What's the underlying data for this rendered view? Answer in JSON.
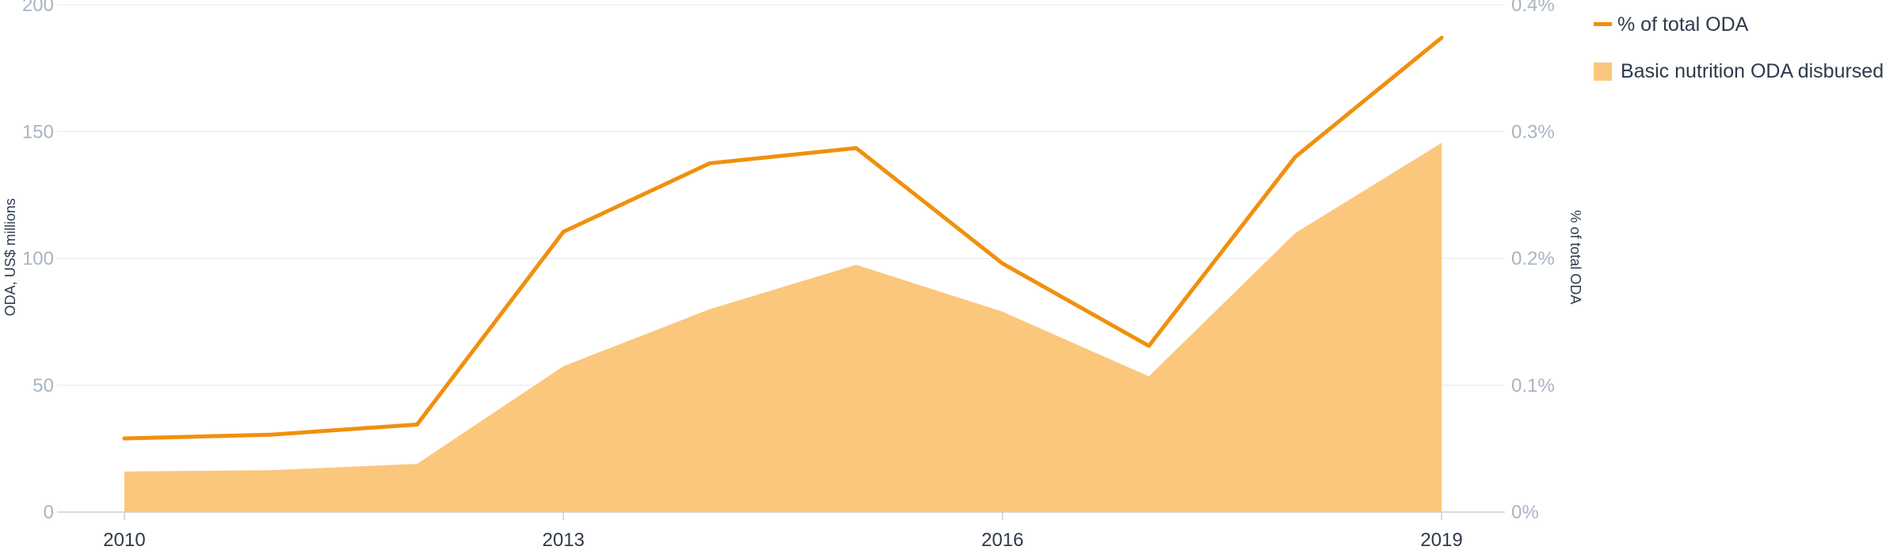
{
  "chart_data": {
    "type": "area",
    "x": [
      2010,
      2011,
      2012,
      2013,
      2014,
      2015,
      2016,
      2017,
      2018,
      2019
    ],
    "x_tick_labels": [
      "2010",
      "2013",
      "2016",
      "2019"
    ],
    "y_left_label": "ODA, US$ millions",
    "y_left_lim": [
      0,
      200
    ],
    "y_left_ticks": [
      "0",
      "50",
      "100",
      "150",
      "200"
    ],
    "y_right_label": "% of total ODA",
    "y_right_lim": [
      0,
      0.4
    ],
    "y_right_ticks": [
      "0%",
      "0.1%",
      "0.2%",
      "0.3%",
      "0.4%"
    ],
    "grid": true,
    "legend_position": "top-right",
    "series": [
      {
        "name": "Basic nutrition ODA disbursed",
        "type": "area",
        "axis": "left",
        "color": "#fbc77c",
        "values": [
          16,
          16.5,
          19,
          57.5,
          80,
          97.5,
          79,
          53.5,
          110,
          145.5
        ]
      },
      {
        "name": "% of total ODA",
        "type": "line",
        "axis": "right",
        "color": "#f0900e",
        "values": [
          0.058,
          0.061,
          0.069,
          0.221,
          0.275,
          0.287,
          0.196,
          0.131,
          0.28,
          0.374
        ]
      }
    ]
  }
}
